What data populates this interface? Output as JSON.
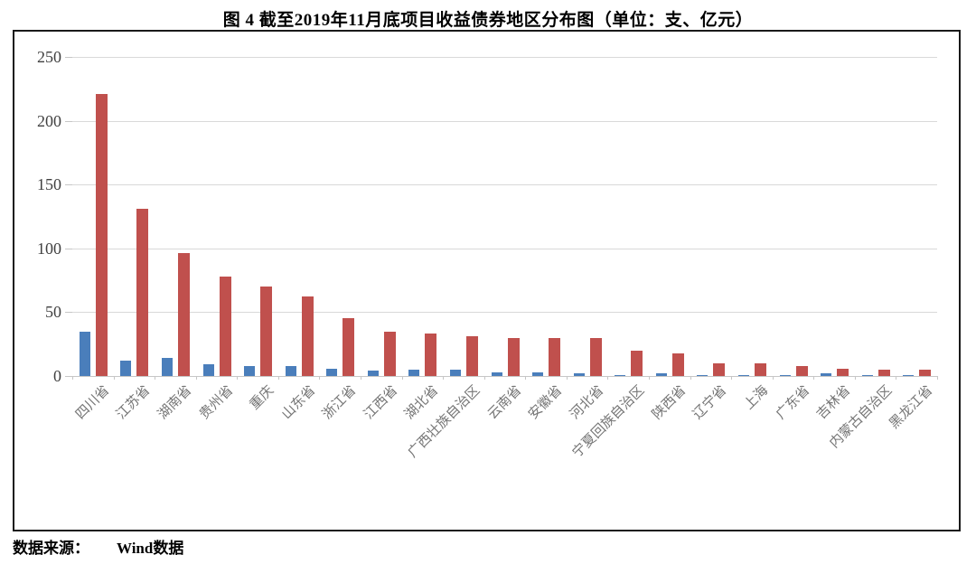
{
  "figure": {
    "title": "图 4  截至2019年11月底项目收益债券地区分布图（单位：支、亿元）",
    "source_label": "数据来源：",
    "source_value": "Wind数据"
  },
  "chart_data": {
    "type": "bar",
    "title": "截至2019年11月底项目收益债券地区分布图",
    "unit_label": "单位：支、亿元",
    "categories": [
      "四川省",
      "江苏省",
      "湖南省",
      "贵州省",
      "重庆",
      "山东省",
      "浙江省",
      "江西省",
      "湖北省",
      "广西壮族自治区",
      "云南省",
      "安徽省",
      "河北省",
      "宁夏回族自治区",
      "陕西省",
      "辽宁省",
      "上海",
      "广东省",
      "吉林省",
      "内蒙古自治区",
      "黑龙江省"
    ],
    "series": [
      {
        "name": "支",
        "color": "#4a7ebb",
        "values": [
          35,
          12,
          14,
          9,
          8,
          8,
          6,
          4,
          5,
          5,
          3,
          3,
          2,
          1,
          2,
          1,
          1,
          1,
          2,
          1,
          1
        ]
      },
      {
        "name": "亿元",
        "color": "#c0504d",
        "values": [
          221,
          131,
          96,
          78,
          70,
          62,
          45,
          35,
          33,
          31,
          30,
          30,
          30,
          20,
          18,
          10,
          10,
          8,
          6,
          5,
          5
        ]
      }
    ],
    "ylim": [
      0,
      250
    ],
    "yticks": [
      0,
      50,
      100,
      150,
      200,
      250
    ],
    "grid": true,
    "legend_position": "none",
    "colors": {
      "grid": "#d9d9d9",
      "axis": "#c6c6c6",
      "ytick_label": "#404040",
      "xtick_label": "#757575",
      "frame_border": "#191919"
    }
  }
}
